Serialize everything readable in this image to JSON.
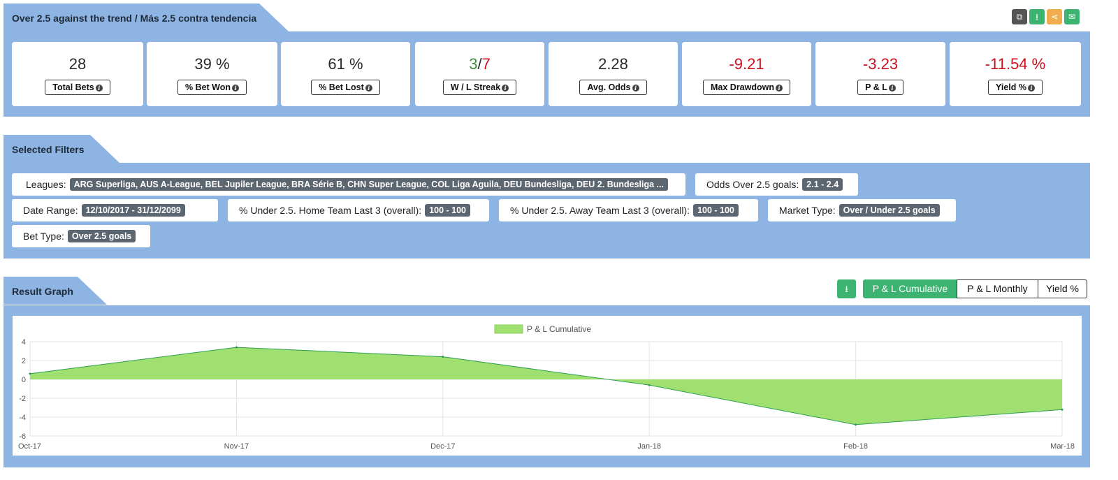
{
  "header": {
    "title": "Over 2.5 against the trend / Más 2.5 contra tendencia",
    "actions": [
      {
        "name": "copy-icon",
        "glyph": "⧉",
        "color": "#555555"
      },
      {
        "name": "download-icon",
        "glyph": "⭳",
        "color": "#3cb371"
      },
      {
        "name": "share-icon",
        "glyph": "⋖",
        "color": "#f0ad4e"
      },
      {
        "name": "email-icon",
        "glyph": "✉",
        "color": "#3cb371"
      }
    ]
  },
  "stats": [
    {
      "value": "28",
      "label": "Total Bets"
    },
    {
      "value": "39 %",
      "label": "% Bet Won"
    },
    {
      "value": "61 %",
      "label": "% Bet Lost"
    },
    {
      "value_win": "3",
      "sep": "/",
      "value_loss": "7",
      "label": "W / L Streak"
    },
    {
      "value": "2.28",
      "label": "Avg. Odds"
    },
    {
      "value": "-9.21",
      "label": "Max Drawdown"
    },
    {
      "value": "-3.23",
      "label": "P & L"
    },
    {
      "value": "-11.54 %",
      "label": "Yield %"
    }
  ],
  "filters": {
    "title": "Selected Filters",
    "items": [
      {
        "label": "Leagues:",
        "value": "ARG Superliga, AUS A-League, BEL Jupiler League, BRA Série B, CHN Super League, COL Liga Aguila, DEU Bundesliga, DEU 2. Bundesliga ..."
      },
      {
        "label": "Odds Over 2.5 goals:",
        "value": "2.1 - 2.4"
      },
      {
        "label": "Date Range:",
        "value": "12/10/2017 - 31/12/2099"
      },
      {
        "label": "% Under 2.5. Home Team Last 3 (overall):",
        "value": "100 - 100"
      },
      {
        "label": "% Under 2.5. Away Team Last 3 (overall):",
        "value": "100 - 100"
      },
      {
        "label": "Market Type:",
        "value": "Over / Under 2.5 goals"
      },
      {
        "label": "Bet Type:",
        "value": "Over 2.5 goals"
      }
    ]
  },
  "graph": {
    "title": "Result Graph",
    "buttons": [
      "P & L Cumulative",
      "P & L Monthly",
      "Yield %"
    ],
    "active": 0
  },
  "chart_data": {
    "type": "area",
    "x": [
      "Oct-17",
      "Nov-17",
      "Dec-17",
      "Jan-18",
      "Feb-18",
      "Mar-18"
    ],
    "series": [
      {
        "name": "P & L Cumulative",
        "values": [
          0.6,
          3.4,
          2.4,
          -0.6,
          -4.8,
          -3.2
        ]
      }
    ],
    "ylim": [
      -6,
      4
    ],
    "yticks": [
      4,
      2,
      0,
      -2,
      -4,
      -6
    ],
    "grid": true,
    "legend": "top-center",
    "fill_color": "#9fe070",
    "line_color": "#2e9e4e"
  }
}
